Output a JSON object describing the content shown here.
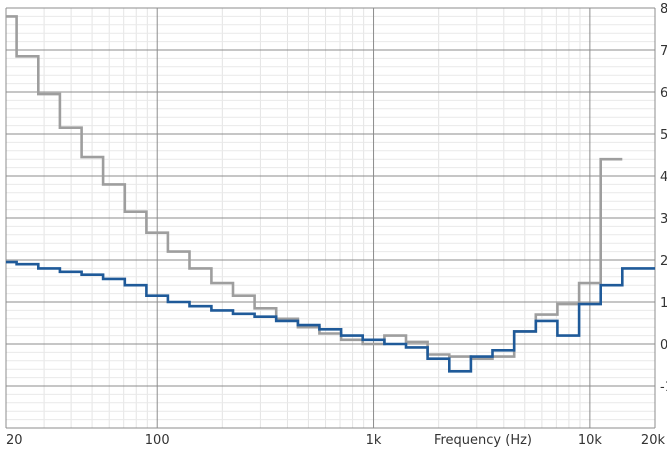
{
  "chart_data": {
    "type": "line",
    "title": "",
    "xlabel": "Frequency (Hz)",
    "ylabel": "",
    "x_scale": "log",
    "xlim": [
      20,
      20000
    ],
    "ylim": [
      -2,
      8
    ],
    "grid": true,
    "x_tick_labels": [
      {
        "value": 20,
        "label": "20"
      },
      {
        "value": 100,
        "label": "100"
      },
      {
        "value": 1000,
        "label": "1k"
      },
      {
        "value": 10000,
        "label": "10k"
      },
      {
        "value": 20000,
        "label": "20k"
      }
    ],
    "y_tick_labels": [
      {
        "value": 8,
        "label": "8"
      },
      {
        "value": 7,
        "label": "7"
      },
      {
        "value": 6,
        "label": "6"
      },
      {
        "value": 5,
        "label": "5"
      },
      {
        "value": 4,
        "label": "4"
      },
      {
        "value": 3,
        "label": "3"
      },
      {
        "value": 2,
        "label": "2"
      },
      {
        "value": 1,
        "label": "1"
      },
      {
        "value": 0,
        "label": "0"
      },
      {
        "value": -1,
        "label": "-1"
      }
    ],
    "series": [
      {
        "color": "#9e9e9e",
        "shape": "step",
        "edges": [
          20,
          22.4,
          28.2,
          35.5,
          44.7,
          56.2,
          70.8,
          89.1,
          112,
          141,
          178,
          224,
          282,
          355,
          447,
          562,
          708,
          891,
          1122,
          1413,
          1778,
          2239,
          2818,
          3548,
          4467,
          5623,
          7079,
          8913,
          11220,
          14125
        ],
        "values": [
          7.8,
          6.85,
          5.95,
          5.15,
          4.45,
          3.8,
          3.15,
          2.65,
          2.2,
          1.8,
          1.45,
          1.15,
          0.85,
          0.6,
          0.4,
          0.25,
          0.1,
          0.0,
          0.2,
          0.05,
          -0.25,
          -0.3,
          -0.35,
          -0.3,
          0.3,
          0.7,
          0.95,
          1.45,
          4.4
        ]
      },
      {
        "color": "#1f5a99",
        "shape": "step",
        "edges": [
          20,
          22.4,
          28.2,
          35.5,
          44.7,
          56.2,
          70.8,
          89.1,
          112,
          141,
          178,
          224,
          282,
          355,
          447,
          562,
          708,
          891,
          1122,
          1413,
          1778,
          2239,
          2818,
          3548,
          4467,
          5623,
          7079,
          8913,
          11220,
          14125,
          17783,
          20000
        ],
        "values": [
          1.95,
          1.9,
          1.8,
          1.72,
          1.65,
          1.55,
          1.4,
          1.15,
          1.0,
          0.9,
          0.8,
          0.72,
          0.65,
          0.55,
          0.45,
          0.35,
          0.2,
          0.1,
          0.0,
          -0.08,
          -0.35,
          -0.65,
          -0.3,
          -0.15,
          0.3,
          0.55,
          0.2,
          0.95,
          1.4,
          1.8,
          1.8
        ]
      }
    ]
  }
}
